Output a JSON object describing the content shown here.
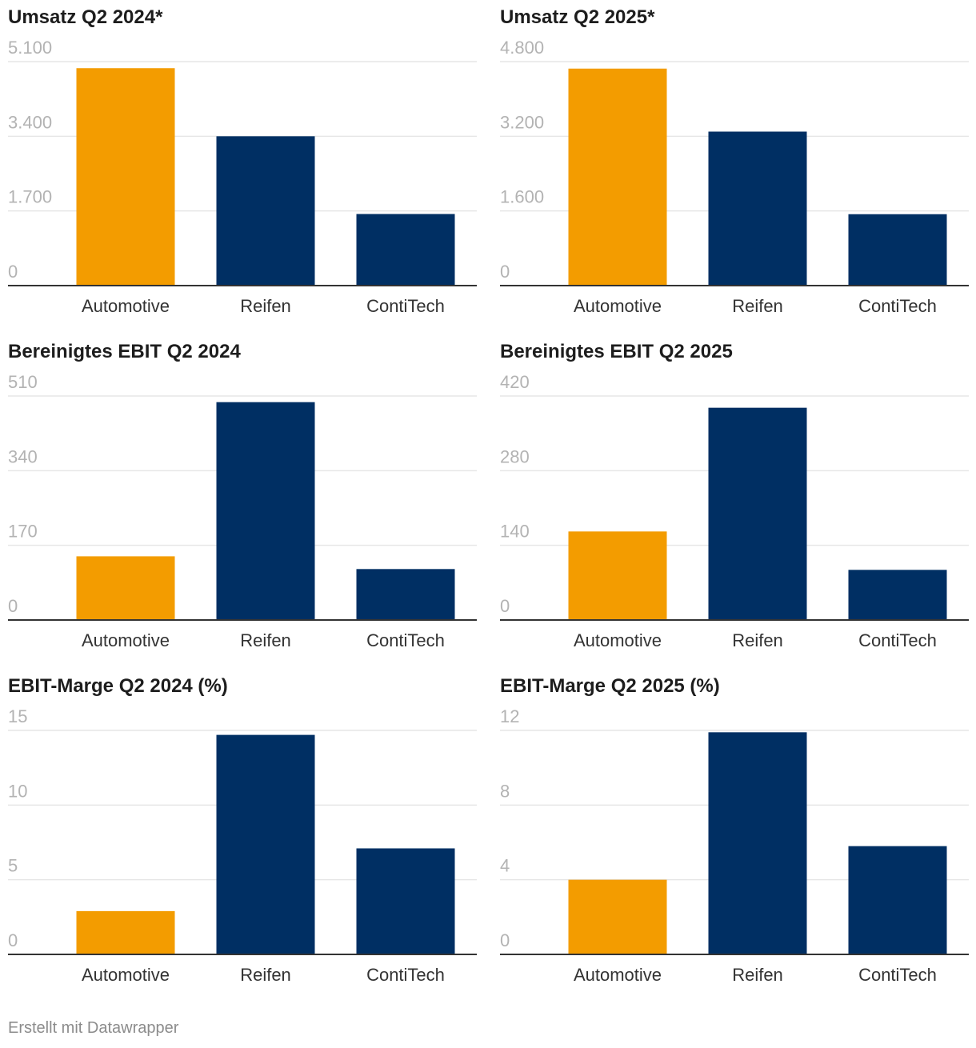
{
  "colors": {
    "highlight": "#f39c00",
    "primary": "#002f63",
    "grid": "#e6e6e6",
    "axis": "#333333"
  },
  "footer": "Erstellt mit Datawrapper",
  "chart_data": [
    {
      "type": "bar",
      "title": "Umsatz Q2 2024*",
      "categories": [
        "Automotive",
        "Reifen",
        "ContiTech"
      ],
      "values": [
        4950,
        3400,
        1630
      ],
      "ylim": [
        0,
        5100
      ],
      "ticks": [
        "0",
        "1.700",
        "3.400",
        "5.100"
      ],
      "highlight": [
        0
      ]
    },
    {
      "type": "bar",
      "title": "Umsatz Q2 2025*",
      "categories": [
        "Automotive",
        "Reifen",
        "ContiTech"
      ],
      "values": [
        4650,
        3300,
        1530
      ],
      "ylim": [
        0,
        4800
      ],
      "ticks": [
        "0",
        "1.600",
        "3.200",
        "4.800"
      ],
      "highlight": [
        0
      ]
    },
    {
      "type": "bar",
      "title": "Bereinigtes EBIT Q2 2024",
      "categories": [
        "Automotive",
        "Reifen",
        "ContiTech"
      ],
      "values": [
        145,
        496,
        116
      ],
      "ylim": [
        0,
        510
      ],
      "ticks": [
        "0",
        "170",
        "340",
        "510"
      ],
      "highlight": [
        0
      ]
    },
    {
      "type": "bar",
      "title": "Bereinigtes EBIT Q2 2025",
      "categories": [
        "Automotive",
        "Reifen",
        "ContiTech"
      ],
      "values": [
        166,
        398,
        94
      ],
      "ylim": [
        0,
        420
      ],
      "ticks": [
        "0",
        "140",
        "280",
        "420"
      ],
      "highlight": [
        0
      ]
    },
    {
      "type": "bar",
      "title": "EBIT-Marge Q2 2024 (%)",
      "categories": [
        "Automotive",
        "Reifen",
        "ContiTech"
      ],
      "values": [
        2.9,
        14.7,
        7.1
      ],
      "ylim": [
        0,
        15
      ],
      "ticks": [
        "0",
        "5",
        "10",
        "15"
      ],
      "highlight": [
        0
      ]
    },
    {
      "type": "bar",
      "title": "EBIT-Marge Q2 2025 (%)",
      "categories": [
        "Automotive",
        "Reifen",
        "ContiTech"
      ],
      "values": [
        4.0,
        11.9,
        5.8
      ],
      "ylim": [
        0,
        12
      ],
      "ticks": [
        "0",
        "4",
        "8",
        "12"
      ],
      "highlight": [
        0
      ]
    }
  ]
}
